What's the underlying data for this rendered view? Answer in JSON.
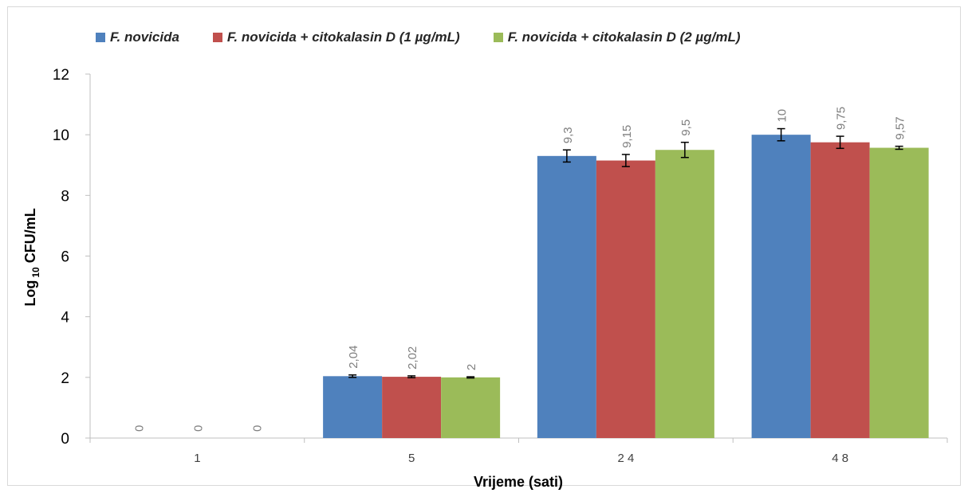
{
  "chart_data": {
    "type": "bar",
    "title": "",
    "xlabel": "Vrijeme (sati)",
    "ylabel_main": "Log",
    "ylabel_sub": "10",
    "ylabel_rest": " CFU/mL",
    "categories": [
      "1",
      "5",
      "2 4",
      "4 8"
    ],
    "ylim": [
      0,
      12
    ],
    "yticks": [
      "0",
      "2",
      "4",
      "6",
      "8",
      "10",
      "12"
    ],
    "legend_position": "top",
    "series": [
      {
        "name": "F. novicida",
        "color": "#4f81bd",
        "values": [
          0,
          2.04,
          9.3,
          10
        ],
        "labels": [
          "0",
          "2,04",
          "9,3",
          "10"
        ],
        "errors": [
          0,
          0.04,
          0.2,
          0.2
        ]
      },
      {
        "name": "F. novicida + citokalasin D (1 µg/mL)",
        "color": "#c0504d",
        "values": [
          0,
          2.02,
          9.15,
          9.75
        ],
        "labels": [
          "0",
          "2,02",
          "9,15",
          "9,75"
        ],
        "errors": [
          0,
          0.03,
          0.2,
          0.2
        ]
      },
      {
        "name": "F. novicida + citokalasin D (2 µg/mL)",
        "color": "#9bbb59",
        "values": [
          0,
          2,
          9.5,
          9.57
        ],
        "labels": [
          "0",
          "2",
          "9,5",
          "9,57"
        ],
        "errors": [
          0,
          0.02,
          0.25,
          0.05
        ]
      }
    ]
  }
}
